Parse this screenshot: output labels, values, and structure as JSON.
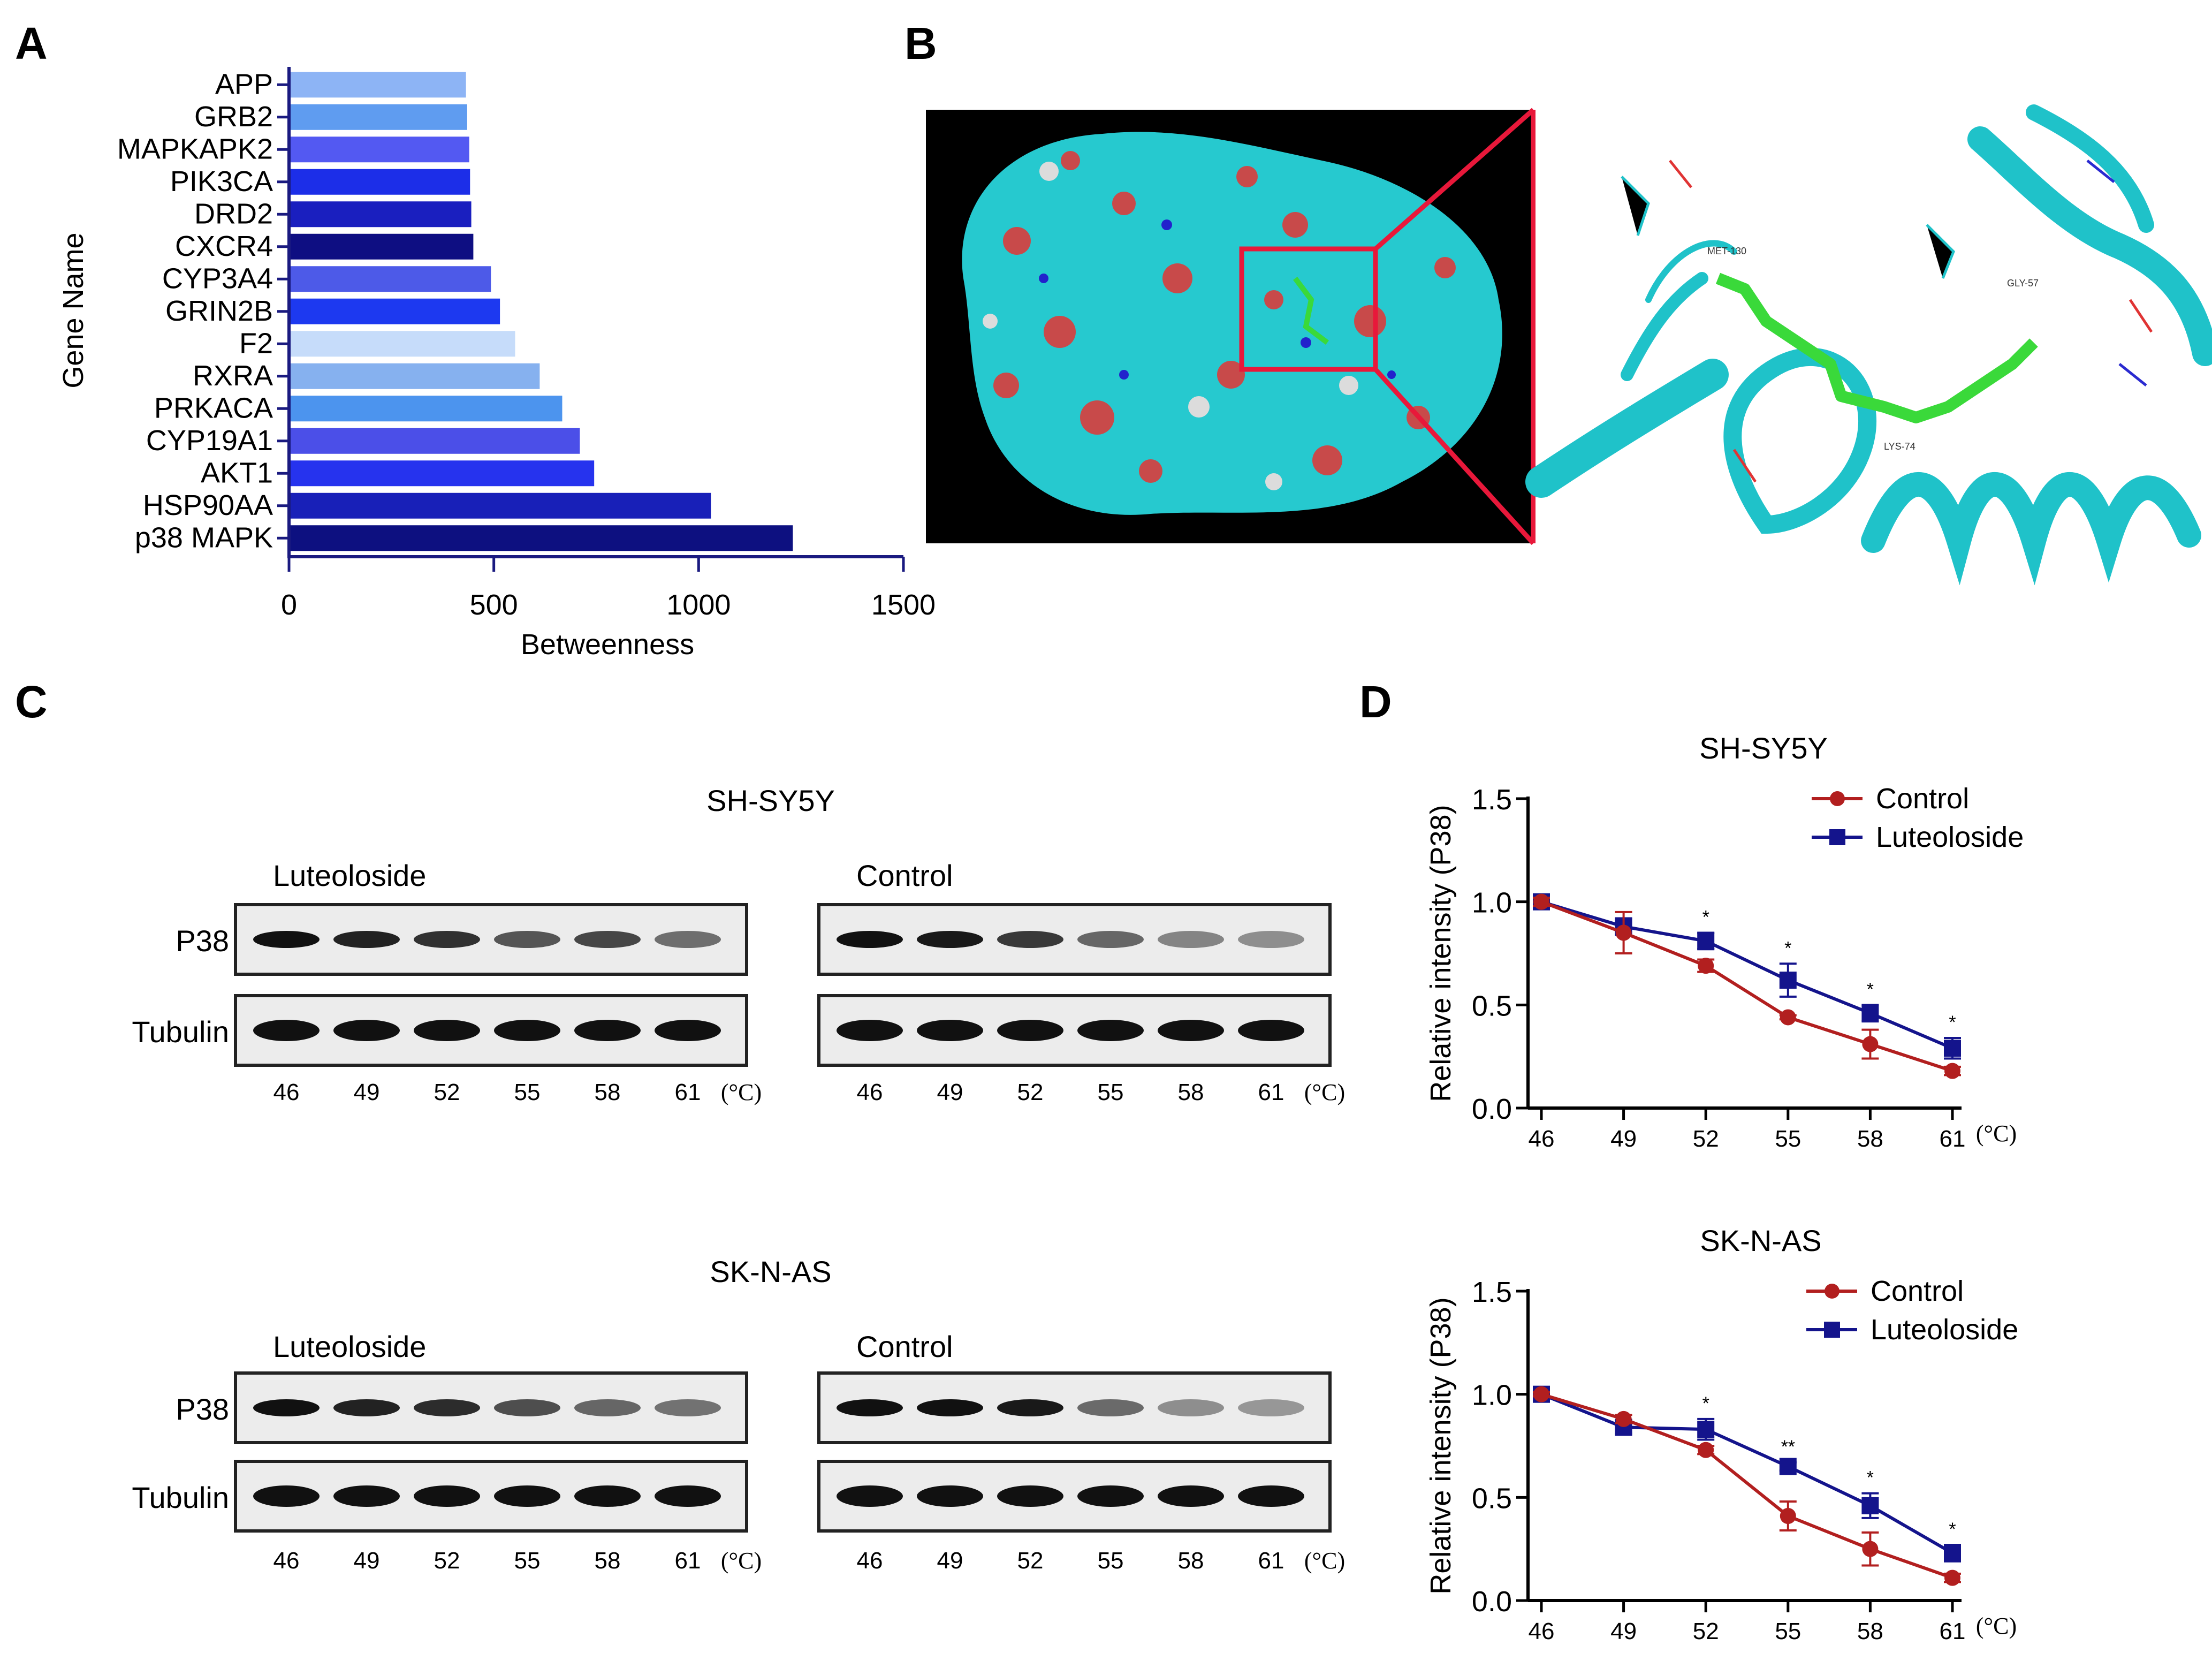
{
  "panels": {
    "A": "A",
    "B": "B",
    "C": "C",
    "D": "D"
  },
  "chart_data": [
    {
      "id": "A",
      "type": "bar",
      "orientation": "horizontal",
      "title": "",
      "xlabel": "Betweenness",
      "ylabel": "Gene Name",
      "xlim": [
        0,
        1500
      ],
      "xticks": [
        0,
        500,
        1000,
        1500
      ],
      "categories": [
        "APP",
        "GRB2",
        "MAPKAPK2",
        "PIK3CA",
        "DRD2",
        "CXCR4",
        "CYP3A4",
        "GRIN2B",
        "F2",
        "RXRA",
        "PRKACA",
        "CYP19A1",
        "AKT1",
        "HSP90AA",
        "p38 MAPK"
      ],
      "values": [
        432,
        435,
        440,
        442,
        445,
        450,
        493,
        515,
        552,
        612,
        667,
        710,
        745,
        1030,
        1230
      ],
      "colors": [
        "#8db4f5",
        "#5f9cf0",
        "#5359f2",
        "#1c2ee8",
        "#1a1fbf",
        "#0e0e82",
        "#4d5ae8",
        "#1d39f0",
        "#c6dcfa",
        "#86b1ef",
        "#4c94ee",
        "#4b4fe8",
        "#2633ee",
        "#1820b8",
        "#0d1080"
      ]
    },
    {
      "id": "D1",
      "type": "line",
      "title": "SH-SY5Y",
      "xlabel": "",
      "ylabel": "Relative intensity (P38)",
      "x": [
        46,
        49,
        52,
        55,
        58,
        61
      ],
      "x_unit": "(°C)",
      "ylim": [
        0,
        1.5
      ],
      "yticks": [
        "0.0",
        "0.5",
        "1.0",
        "1.5"
      ],
      "series": [
        {
          "name": "Control",
          "color": "#b21f1f",
          "marker": "circle",
          "values": [
            1.0,
            0.85,
            0.69,
            0.44,
            0.31,
            0.18
          ],
          "errors": [
            0.02,
            0.1,
            0.03,
            0.01,
            0.07,
            0.02
          ]
        },
        {
          "name": "Luteoloside",
          "color": "#14148c",
          "marker": "square",
          "values": [
            1.0,
            0.88,
            0.81,
            0.62,
            0.46,
            0.29
          ],
          "errors": [
            0.02,
            0.04,
            0.04,
            0.08,
            0.04,
            0.05
          ]
        }
      ],
      "annotations": [
        "",
        "",
        "*",
        "*",
        "*",
        "*"
      ]
    },
    {
      "id": "D2",
      "type": "line",
      "title": "SK-N-AS",
      "xlabel": "",
      "ylabel": "Relative intensity (P38)",
      "x": [
        46,
        49,
        52,
        55,
        58,
        61
      ],
      "x_unit": "(°C)",
      "ylim": [
        0,
        1.5
      ],
      "yticks": [
        "0.0",
        "0.5",
        "1.0",
        "1.5"
      ],
      "series": [
        {
          "name": "Control",
          "color": "#b21f1f",
          "marker": "circle",
          "values": [
            1.0,
            0.88,
            0.73,
            0.41,
            0.25,
            0.11
          ],
          "errors": [
            0.01,
            0.02,
            0.02,
            0.07,
            0.08,
            0.02
          ]
        },
        {
          "name": "Luteoloside",
          "color": "#14148c",
          "marker": "square",
          "values": [
            1.0,
            0.84,
            0.83,
            0.65,
            0.46,
            0.23
          ],
          "errors": [
            0.01,
            0.03,
            0.05,
            0.02,
            0.06,
            0.04
          ]
        }
      ],
      "annotations": [
        "",
        "",
        "*",
        "**",
        "*",
        "*"
      ]
    }
  ],
  "docking": {
    "labels": [
      "MET-130",
      "GLY-57",
      "LYS-74"
    ]
  },
  "blots": {
    "groups": [
      {
        "cell_line": "SH-SY5Y",
        "panels": [
          {
            "title": "Luteoloside",
            "p38": [
              1.0,
              0.9,
              0.82,
              0.62,
              0.7,
              0.48
            ]
          },
          {
            "title": "Control",
            "p38": [
              1.0,
              0.95,
              0.78,
              0.52,
              0.36,
              0.3
            ]
          }
        ]
      },
      {
        "cell_line": "SK-N-AS",
        "panels": [
          {
            "title": "Luteoloside",
            "p38": [
              1.0,
              0.9,
              0.85,
              0.66,
              0.52,
              0.45
            ]
          },
          {
            "title": "Control",
            "p38": [
              1.0,
              1.0,
              0.95,
              0.5,
              0.3,
              0.25
            ]
          }
        ]
      }
    ],
    "row_labels": [
      "P38",
      "Tubulin"
    ],
    "temps": [
      "46",
      "49",
      "52",
      "55",
      "58",
      "61"
    ],
    "unit": "(°C)"
  }
}
